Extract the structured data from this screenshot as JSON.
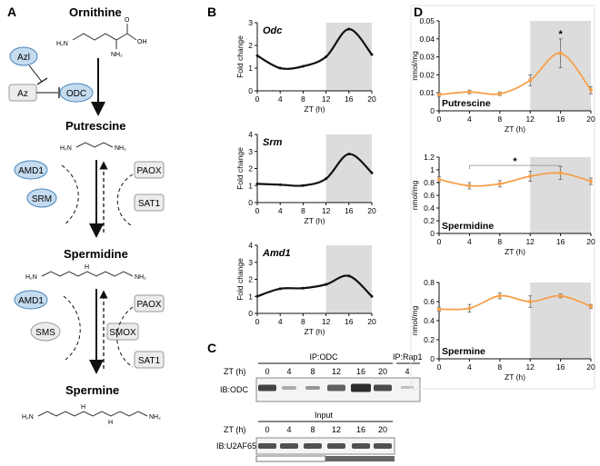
{
  "panels": {
    "A": {
      "letter": "A",
      "metabolites": [
        "Ornithine",
        "Putrescine",
        "Spermidine",
        "Spermine"
      ],
      "enzymes": {
        "azl": "Azl",
        "az": "Az",
        "odc": "ODC",
        "amd1_top": "AMD1",
        "srm": "SRM",
        "paox_top": "PAOX",
        "sat1_top": "SAT1",
        "amd1_bottom": "AMD1",
        "sms": "SMS",
        "smox": "SMOX",
        "paox_bottom": "PAOX",
        "sat1_bottom": "SAT1"
      },
      "struct_labels": {
        "h2n": "H₂N",
        "nh2": "NH₂",
        "oh": "OH",
        "o": "O",
        "nh": "NH",
        "h": "H",
        "n": "N"
      },
      "colors": {
        "blue_fill": "#c5dbef",
        "blue_stroke": "#4a85b8",
        "gray_fill": "#ececec",
        "gray_stroke": "#9a9a9a"
      }
    },
    "B": {
      "letter": "B",
      "shade_color": "#dcdcdc",
      "plots": [
        {
          "gene": "Odc",
          "ylabel": "Fold change",
          "xlabel": "ZT (h)",
          "yticks": [
            "0",
            "1",
            "2",
            "3"
          ],
          "xticks": [
            "0",
            "4",
            "8",
            "12",
            "16",
            "20"
          ]
        },
        {
          "gene": "Srm",
          "ylabel": "Fold change",
          "xlabel": "ZT (h)",
          "yticks": [
            "0",
            "1",
            "2",
            "3",
            "4"
          ],
          "xticks": [
            "0",
            "4",
            "8",
            "12",
            "16",
            "20"
          ]
        },
        {
          "gene": "Amd1",
          "ylabel": "Fold change",
          "xlabel": "ZT (h)",
          "yticks": [
            "0",
            "1",
            "2",
            "3",
            "4"
          ],
          "xticks": [
            "0",
            "4",
            "8",
            "12",
            "16",
            "20"
          ]
        }
      ]
    },
    "C": {
      "letter": "C",
      "ip_label": "IP:ODC",
      "ip_ctrl": "IP:Rap1",
      "zt_label": "ZT (h)",
      "ib1": "IB:ODC",
      "input_label": "Input",
      "ib2": "IB:U2AF65",
      "zts": [
        "0",
        "4",
        "8",
        "12",
        "16",
        "20"
      ],
      "ctrl_zt": "4"
    },
    "D": {
      "letter": "D",
      "line_color": "#f5a04a",
      "shade_color": "#dcdcdc",
      "star": "*",
      "plots": [
        {
          "label": "Putrescine",
          "ylabel": "nmol/mg",
          "xlabel": "ZT (h)",
          "yticks": [
            "0",
            "0.01",
            "0.02",
            "0.03",
            "0.04",
            "0.05"
          ],
          "xticks": [
            "0",
            "4",
            "8",
            "12",
            "16",
            "20"
          ]
        },
        {
          "label": "Spermidine",
          "ylabel": "nmol/mg",
          "xlabel": "ZT (h)",
          "yticks": [
            "0",
            "0.2",
            "0.4",
            "0.6",
            "0.8",
            "1",
            "1.2"
          ],
          "xticks": [
            "0",
            "4",
            "8",
            "12",
            "16",
            "20"
          ]
        },
        {
          "label": "Spermine",
          "ylabel": "nmol/mg",
          "xlabel": "ZT (h)",
          "yticks": [
            "0",
            "0.2",
            "0.4",
            "0.6",
            "0.8"
          ],
          "xticks": [
            "0",
            "4",
            "8",
            "12",
            "16",
            "20"
          ]
        }
      ]
    }
  },
  "chart_data": [
    {
      "type": "line",
      "title": "Odc",
      "xlabel": "ZT (h)",
      "ylabel": "Fold change",
      "x": [
        0,
        4,
        8,
        12,
        16,
        20
      ],
      "values": [
        1.55,
        1.0,
        1.08,
        1.5,
        2.72,
        1.6
      ],
      "ylim": [
        0,
        3
      ],
      "xlim": [
        0,
        20
      ],
      "shaded_x": [
        12,
        20
      ]
    },
    {
      "type": "line",
      "title": "Srm",
      "xlabel": "ZT (h)",
      "ylabel": "Fold change",
      "x": [
        0,
        4,
        8,
        12,
        16,
        20
      ],
      "values": [
        1.1,
        1.05,
        1.0,
        1.4,
        2.85,
        1.75
      ],
      "ylim": [
        0,
        4
      ],
      "xlim": [
        0,
        20
      ],
      "shaded_x": [
        12,
        20
      ]
    },
    {
      "type": "line",
      "title": "Amd1",
      "xlabel": "ZT (h)",
      "ylabel": "Fold change",
      "x": [
        0,
        4,
        8,
        12,
        16,
        20
      ],
      "values": [
        1.0,
        1.45,
        1.48,
        1.7,
        2.2,
        1.0
      ],
      "ylim": [
        0,
        4
      ],
      "xlim": [
        0,
        20
      ],
      "shaded_x": [
        12,
        20
      ]
    },
    {
      "type": "line",
      "title": "Putrescine",
      "xlabel": "ZT (h)",
      "ylabel": "nmol/mg",
      "x": [
        0,
        4,
        8,
        12,
        16,
        20
      ],
      "values": [
        0.009,
        0.0105,
        0.0095,
        0.017,
        0.032,
        0.0115
      ],
      "errors": [
        0.001,
        0.001,
        0.001,
        0.003,
        0.008,
        0.002
      ],
      "ylim": [
        0,
        0.05
      ],
      "xlim": [
        0,
        20
      ],
      "shaded_x": [
        12,
        20
      ]
    },
    {
      "type": "line",
      "title": "Spermidine",
      "xlabel": "ZT (h)",
      "ylabel": "nmol/mg",
      "x": [
        0,
        4,
        8,
        12,
        16,
        20
      ],
      "values": [
        0.85,
        0.75,
        0.78,
        0.9,
        0.95,
        0.82
      ],
      "errors": [
        0.04,
        0.05,
        0.05,
        0.08,
        0.1,
        0.05
      ],
      "ylim": [
        0,
        1.2
      ],
      "xlim": [
        0,
        20
      ],
      "shaded_x": [
        12,
        20
      ]
    },
    {
      "type": "line",
      "title": "Spermine",
      "xlabel": "ZT (h)",
      "ylabel": "nmol/mg",
      "x": [
        0,
        4,
        8,
        12,
        16,
        20
      ],
      "values": [
        0.52,
        0.53,
        0.66,
        0.6,
        0.66,
        0.55
      ],
      "errors": [
        0.02,
        0.04,
        0.03,
        0.06,
        0.02,
        0.02
      ],
      "ylim": [
        0,
        0.8
      ],
      "xlim": [
        0,
        20
      ],
      "shaded_x": [
        12,
        20
      ]
    }
  ]
}
